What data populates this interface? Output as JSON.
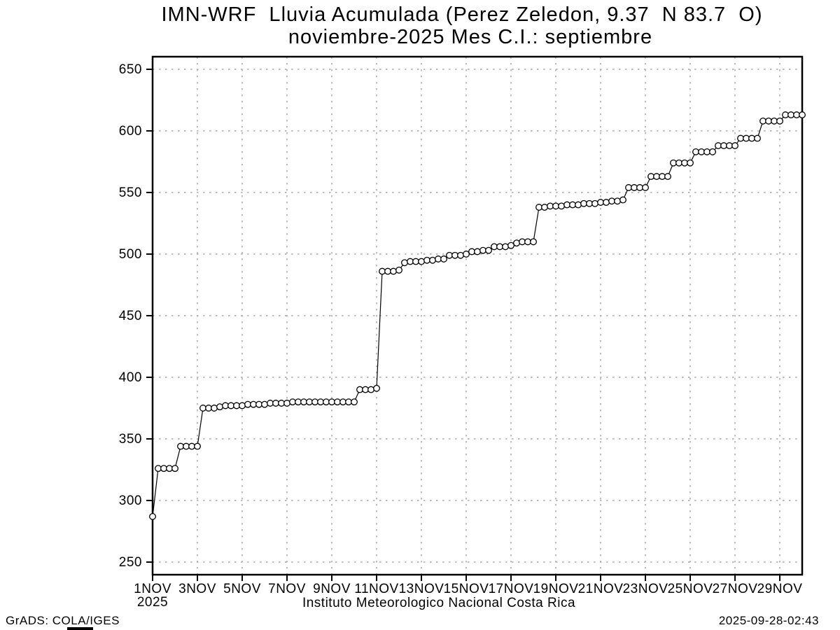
{
  "window": {
    "background_color": "#ffffff",
    "text_color": "#000000"
  },
  "footer": {
    "credit": "GrADS: COLA/IGES",
    "timestamp": "2025-09-28-02:43"
  },
  "chart_data": {
    "type": "line",
    "title": "IMN-WRF  Lluvia Acumulada (Perez Zeledon, 9.37  N 83.7  O)",
    "subtitle": "noviembre-2025 Mes C.I.: septiembre",
    "xlabel": "Instituto Meteorologico Nacional Costa Rica",
    "ylabel": "",
    "legend": "none",
    "grid": "dotted",
    "marker": "open-circle",
    "line_color": "#000000",
    "grid_color": "#a8a8a8",
    "background_color": "#ffffff",
    "ylim": [
      240,
      660
    ],
    "y_ticks": [
      250,
      300,
      350,
      400,
      450,
      500,
      550,
      600,
      650
    ],
    "x_year_label": "2025",
    "x_tick_days": [
      1,
      3,
      5,
      7,
      9,
      11,
      13,
      15,
      17,
      19,
      21,
      23,
      25,
      27,
      29
    ],
    "x_tick_labels": [
      "1NOV",
      "3NOV",
      "5NOV",
      "7NOV",
      "9NOV",
      "11NOV",
      "13NOV",
      "15NOV",
      "17NOV",
      "19NOV",
      "21NOV",
      "23NOV",
      "25NOV",
      "27NOV",
      "29NOV"
    ],
    "x_start": "1NOV2025 00Z",
    "x_interval_hours": 6,
    "series": [
      {
        "name": "accumulated_rainfall",
        "values": [
          287,
          326,
          326,
          326,
          326,
          344,
          344,
          344,
          344,
          375,
          375,
          375,
          376,
          377,
          377,
          377,
          377,
          378,
          378,
          378,
          378,
          379,
          379,
          379,
          379,
          380,
          380,
          380,
          380,
          380,
          380,
          380,
          380,
          380,
          380,
          380,
          380,
          390,
          390,
          390,
          391,
          486,
          486,
          486,
          487,
          493,
          494,
          494,
          494,
          495,
          495,
          496,
          496,
          499,
          499,
          499,
          500,
          502,
          502,
          503,
          503,
          506,
          506,
          506,
          507,
          509,
          510,
          510,
          510,
          538,
          538,
          539,
          539,
          539,
          540,
          540,
          540,
          541,
          541,
          541,
          542,
          542,
          543,
          543,
          544,
          554,
          554,
          554,
          554,
          563,
          563,
          563,
          563,
          574,
          574,
          574,
          574,
          583,
          583,
          583,
          583,
          588,
          588,
          588,
          588,
          594,
          594,
          594,
          594,
          608,
          608,
          608,
          608,
          613,
          613,
          613,
          613
        ]
      }
    ]
  }
}
